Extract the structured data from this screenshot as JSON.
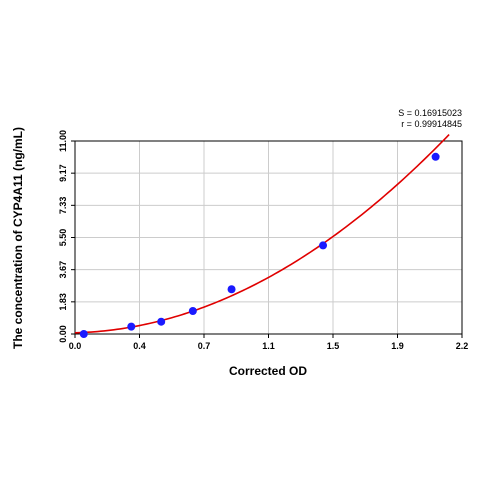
{
  "chart_data": {
    "type": "scatter",
    "xlabel": "Corrected OD",
    "ylabel": "The concentration of CYP4A11 (ng/mL)",
    "xlim": [
      0,
      2.2
    ],
    "ylim": [
      0,
      11.0
    ],
    "x_ticks": [
      "0.0",
      "0.4",
      "0.7",
      "1.1",
      "1.5",
      "1.9",
      "2.2"
    ],
    "y_ticks": [
      "0.00",
      "1.83",
      "3.67",
      "5.50",
      "7.33",
      "9.17",
      "11.00"
    ],
    "grid": true,
    "points": [
      {
        "x": 0.05,
        "y": 0.0
      },
      {
        "x": 0.32,
        "y": 0.42
      },
      {
        "x": 0.49,
        "y": 0.7
      },
      {
        "x": 0.67,
        "y": 1.31
      },
      {
        "x": 0.89,
        "y": 2.55
      },
      {
        "x": 1.41,
        "y": 5.05
      },
      {
        "x": 2.05,
        "y": 10.1
      }
    ],
    "fit_curve": {
      "a": 0.07,
      "b": 0.25,
      "c": 2.38,
      "x_start": 0.0,
      "x_end": 2.2
    },
    "stats": {
      "s_label": "S = 0.16915023",
      "r_label": "r = 0.99914845"
    },
    "colors": {
      "points": "#1a1aff",
      "curve": "#e00000",
      "grid": "#cccccc"
    }
  }
}
